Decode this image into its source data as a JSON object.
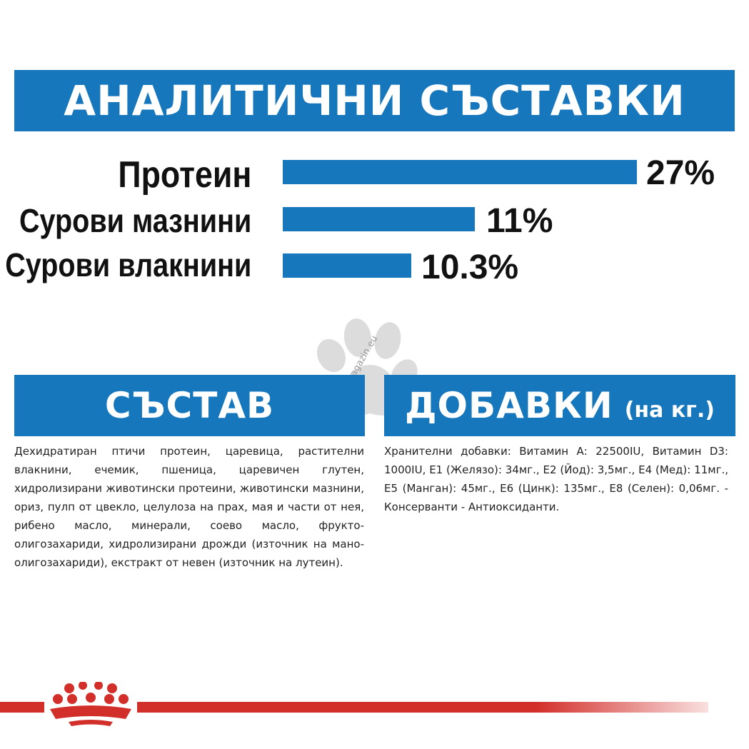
{
  "analytic": {
    "title": "АНАЛИТИЧНИ СЪСТАВКИ",
    "rows": [
      {
        "label": "Протеин",
        "value": "27%"
      },
      {
        "label": "Сурови мазнини",
        "value": "11%"
      },
      {
        "label": "Сурови влакнини",
        "value": "10.3%"
      }
    ]
  },
  "composition": {
    "title": "СЪСТАВ",
    "text": "Дехидратиран птичи протеин, царевица, растителни влакнини, ечемик, пшеница, царевичен глутен, хидролизирани животински протеини, животински мазнини, ориз, пулп от цвекло, целулоза на прах, мая и части от нея, рибено масло, минерали, соево масло, фрукто-олигозахариди, хидролизирани дрожди (източник на мано- олигозахариди), екстракт от невен (източник на лутеин)."
  },
  "additives": {
    "title": "ДОБАВКИ",
    "unit": "(на кг.)",
    "text": "Хранителни добавки: Витамин А: 22500IU, Витамин D3: 1000IU, Е1 (Желязо): 34мг., Е2 (Йод): 3,5мг., Е4 (Мед): 11мг., Е5 (Манган): 45мг., Е6 (Цинк): 135мг., Е8 (Селен): 0,06мг. - Консерванти - Антиоксиданти."
  },
  "watermark": {
    "text": "zoomagazin.eu",
    "icon": "paw-icon"
  },
  "footer": {
    "logo": "royal-canin-crown-icon"
  },
  "colors": {
    "accent": "#1777bd",
    "brand_red": "#d32f2a"
  }
}
